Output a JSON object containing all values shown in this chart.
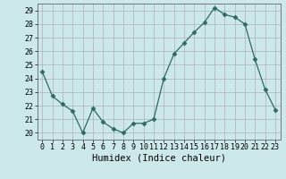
{
  "x": [
    0,
    1,
    2,
    3,
    4,
    5,
    6,
    7,
    8,
    9,
    10,
    11,
    12,
    13,
    14,
    15,
    16,
    17,
    18,
    19,
    20,
    21,
    22,
    23
  ],
  "y": [
    24.5,
    22.7,
    22.1,
    21.6,
    20.0,
    21.8,
    20.8,
    20.3,
    20.0,
    20.7,
    20.7,
    21.0,
    24.0,
    25.8,
    26.6,
    27.4,
    28.1,
    29.2,
    28.7,
    28.5,
    28.0,
    25.4,
    23.2,
    21.7
  ],
  "line_color": "#2e6b5e",
  "marker": "D",
  "marker_size": 2.5,
  "bg_color": "#cce8e8",
  "grid_color": "#b0b0b0",
  "grid_color_major": "#c8c8c8",
  "xlabel": "Humidex (Indice chaleur)",
  "xlim": [
    -0.5,
    23.5
  ],
  "ylim": [
    19.5,
    29.5
  ],
  "yticks": [
    20,
    21,
    22,
    23,
    24,
    25,
    26,
    27,
    28,
    29
  ],
  "xticks": [
    0,
    1,
    2,
    3,
    4,
    5,
    6,
    7,
    8,
    9,
    10,
    11,
    12,
    13,
    14,
    15,
    16,
    17,
    18,
    19,
    20,
    21,
    22,
    23
  ],
  "tick_fontsize": 6.0,
  "xlabel_fontsize": 7.5
}
